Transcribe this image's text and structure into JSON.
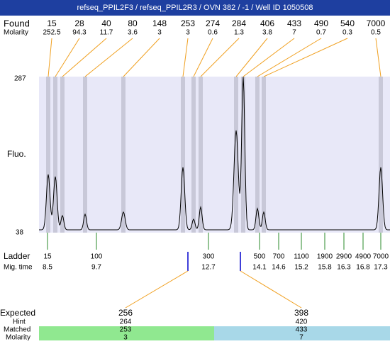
{
  "header": {
    "title": "refseq_PPIL2F3 / refseq_PPIL2R3 / OVN 382 / -1 / Well ID 1050508"
  },
  "found": {
    "label": "Found",
    "molarity_label": "Molarity",
    "sizes": [
      "15",
      "28",
      "40",
      "80",
      "148",
      "253",
      "274",
      "284",
      "406",
      "433",
      "490",
      "540",
      "7000"
    ],
    "molarity": [
      "252.5",
      "94.3",
      "11.7",
      "3.6",
      "3",
      "3",
      "0.6",
      "1.3",
      "3.8",
      "7",
      "0.7",
      "0.3",
      "0.5"
    ]
  },
  "plot": {
    "y_max_label": "287",
    "y_min_label": "38",
    "y_axis_label": "Fluo."
  },
  "ladder": {
    "label": "Ladder",
    "time_label": "Mig. time",
    "sizes": [
      "15",
      "100",
      "300",
      "500",
      "700",
      "1100",
      "1900",
      "2900",
      "4900",
      "7000"
    ],
    "times": [
      "8.5",
      "9.7",
      "12.7",
      "14.1",
      "14.6",
      "15.2",
      "15.8",
      "16.3",
      "16.8",
      "17.3"
    ]
  },
  "expected": {
    "label": "Expected",
    "hint_label": "Hint",
    "matched_label": "Matched",
    "molarity_label": "Molarity",
    "values": [
      "256",
      "398"
    ],
    "hints": [
      "264",
      "420"
    ],
    "matched": [
      "253",
      "433"
    ],
    "molarity": [
      "3",
      "7"
    ]
  }
}
